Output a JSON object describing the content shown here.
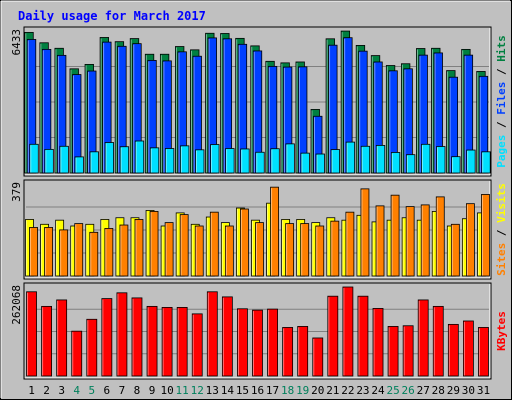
{
  "colors": {
    "frame_bg": "#C0C0C0",
    "panel_bg": "#C0C0C0",
    "grid": "#808080",
    "title": "#0000FF",
    "hits": "#008040",
    "files": "#0040FF",
    "pages": "#00E0FF",
    "visits": "#FFFF00",
    "sites": "#FF8000",
    "kbytes": "#FF0000",
    "weekend_label": "#00805C",
    "weekday_label": "#000000"
  },
  "chart_data": {
    "type": "bar",
    "title": "Daily usage for March 2017",
    "days": [
      "1",
      "2",
      "3",
      "4",
      "5",
      "6",
      "7",
      "8",
      "9",
      "10",
      "11",
      "12",
      "13",
      "14",
      "15",
      "16",
      "17",
      "18",
      "19",
      "20",
      "21",
      "22",
      "23",
      "24",
      "25",
      "26",
      "27",
      "28",
      "29",
      "30",
      "31"
    ],
    "weekend_days": [
      "4",
      "5",
      "11",
      "12",
      "18",
      "19",
      "25",
      "26"
    ],
    "panels": [
      {
        "ylabel_max": "6433",
        "ymax": 6433,
        "side_labels": [
          {
            "text": "Hits",
            "color_key": "hits"
          },
          {
            "text": "Files",
            "color_key": "files"
          },
          {
            "text": "Pages",
            "color_key": "pages"
          }
        ],
        "series": [
          {
            "name": "Hits",
            "color_key": "hits",
            "values": [
              6370,
              5900,
              5650,
              4720,
              4920,
              6140,
              5950,
              6090,
              5380,
              5380,
              5730,
              5580,
              6330,
              6320,
              6100,
              5760,
              5060,
              4990,
              5030,
              2880,
              6080,
              6430,
              5780,
              5320,
              4870,
              4950,
              5640,
              5650,
              4640,
              5600,
              4600
            ]
          },
          {
            "name": "Files",
            "color_key": "files",
            "values": [
              6050,
              5600,
              5330,
              4460,
              4620,
              5930,
              5740,
              5860,
              5100,
              5080,
              5490,
              5290,
              6120,
              6080,
              5830,
              5530,
              4830,
              4800,
              4810,
              2570,
              5790,
              6130,
              5520,
              5030,
              4630,
              4720,
              5340,
              5440,
              4340,
              5340,
              4380
            ]
          },
          {
            "name": "Pages",
            "color_key": "pages",
            "values": [
              1300,
              1070,
              1210,
              730,
              960,
              1380,
              1190,
              1450,
              1140,
              1110,
              1230,
              1050,
              1290,
              1110,
              1090,
              940,
              1100,
              1320,
              900,
              860,
              1060,
              1400,
              1210,
              1250,
              930,
              830,
              1300,
              1200,
              740,
              1040,
              960
            ]
          }
        ]
      },
      {
        "ylabel_max": "379",
        "ymax": 379,
        "side_labels": [
          {
            "text": "Visits",
            "color_key": "visits"
          },
          {
            "text": "Sites",
            "color_key": "sites"
          }
        ],
        "series": [
          {
            "name": "Visits",
            "color_key": "visits",
            "values": [
              233,
              213,
              230,
              206,
              213,
              233,
              240,
              240,
              270,
              206,
              260,
              213,
              243,
              220,
              280,
              230,
              300,
              233,
              233,
              220,
              240,
              230,
              250,
              223,
              230,
              240,
              230,
              266,
              206,
              236,
              260
            ]
          },
          {
            "name": "Sites",
            "color_key": "sites",
            "values": [
              200,
              200,
              190,
              216,
              180,
              196,
              210,
              233,
              266,
              220,
              253,
              206,
              263,
              206,
              276,
              220,
              366,
              216,
              216,
              206,
              226,
              263,
              359,
              289,
              333,
              286,
              293,
              326,
              213,
              298,
              336
            ]
          }
        ]
      },
      {
        "ylabel_max": "262068",
        "ymax": 262068,
        "side_labels": [
          {
            "text": "KBytes",
            "color_key": "kbytes"
          }
        ],
        "series": [
          {
            "name": "KBytes",
            "color_key": "kbytes",
            "values": [
              248000,
              205000,
              224000,
              132000,
              167000,
              228000,
              245000,
              230000,
              205000,
              202000,
              202000,
              183000,
              248000,
              233000,
              198000,
              194000,
              197000,
              143000,
              146000,
              112000,
              235000,
              262068,
              235000,
              199000,
              146000,
              148000,
              224000,
              205000,
              152000,
              162000,
              143000
            ]
          }
        ]
      }
    ]
  }
}
